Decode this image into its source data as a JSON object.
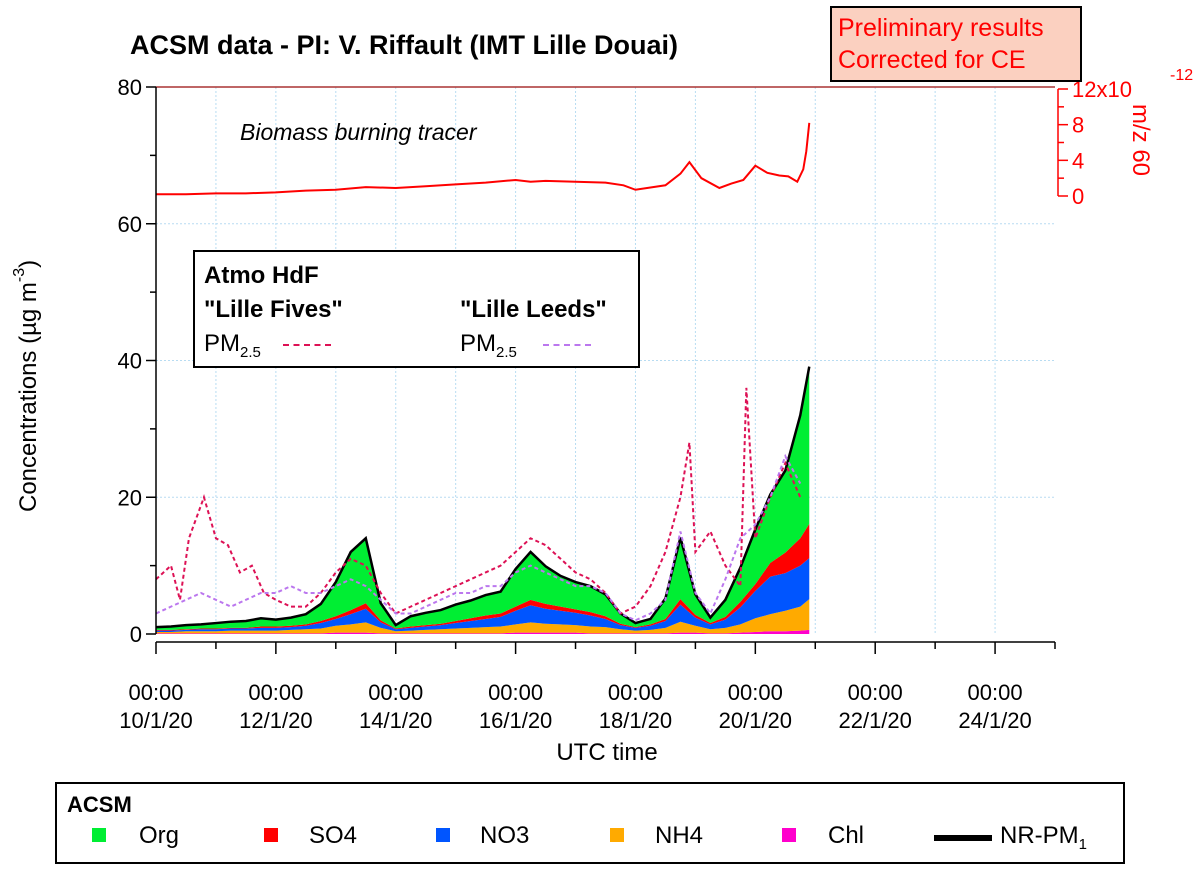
{
  "chart_data": {
    "type": "area",
    "title": "ACSM data - PI: V. Riffault (IMT Lille Douai)",
    "note_box": [
      "Preliminary results",
      "Corrected for CE"
    ],
    "xlabel": "UTC time",
    "ylabel": "Concentrations (µg m",
    "ylabel_sup": "-3",
    "ylabel_close": ")",
    "ylim": [
      0,
      80
    ],
    "yticks": [
      "0",
      "20",
      "40",
      "60",
      "80"
    ],
    "xlim": [
      "2020-01-10T00:00",
      "2020-01-25T00:00"
    ],
    "xticks": [
      {
        "day": 0,
        "time": "00:00",
        "date": "10/1/20"
      },
      {
        "day": 2,
        "time": "00:00",
        "date": "12/1/20"
      },
      {
        "day": 4,
        "time": "00:00",
        "date": "14/1/20"
      },
      {
        "day": 6,
        "time": "00:00",
        "date": "16/1/20"
      },
      {
        "day": 8,
        "time": "00:00",
        "date": "18/1/20"
      },
      {
        "day": 10,
        "time": "00:00",
        "date": "20/1/20"
      },
      {
        "day": 12,
        "time": "00:00",
        "date": "22/1/20"
      },
      {
        "day": 14,
        "time": "00:00",
        "date": "24/1/20"
      }
    ],
    "right_axis": {
      "label": "m/z 60",
      "ylim": [
        0,
        1.2e-11
      ],
      "ticks": [
        "0",
        "4",
        "8",
        "12x10"
      ],
      "exp": "-12",
      "color": "#ff0000",
      "annotation": "Biomass burning tracer"
    },
    "x_days": [
      0,
      0.25,
      0.5,
      0.75,
      1,
      1.25,
      1.5,
      1.75,
      2,
      2.25,
      2.5,
      2.75,
      3,
      3.25,
      3.5,
      3.75,
      4,
      4.25,
      4.5,
      4.75,
      5,
      5.25,
      5.5,
      5.75,
      6,
      6.25,
      6.5,
      6.75,
      7,
      7.25,
      7.5,
      7.75,
      8,
      8.25,
      8.5,
      8.75,
      9,
      9.25,
      9.5,
      9.75,
      10,
      10.25,
      10.5,
      10.75,
      10.9
    ],
    "series": [
      {
        "name": "Chl",
        "color": "#ff00cc",
        "values": [
          0.1,
          0.1,
          0.1,
          0.1,
          0.1,
          0.1,
          0.1,
          0.1,
          0.1,
          0.1,
          0.1,
          0.1,
          0.2,
          0.2,
          0.2,
          0.1,
          0.1,
          0.1,
          0.1,
          0.1,
          0.1,
          0.1,
          0.1,
          0.1,
          0.2,
          0.2,
          0.2,
          0.2,
          0.2,
          0.1,
          0.1,
          0.1,
          0.1,
          0.1,
          0.1,
          0.2,
          0.2,
          0.1,
          0.1,
          0.2,
          0.3,
          0.4,
          0.4,
          0.5,
          0.6
        ]
      },
      {
        "name": "NH4",
        "color": "#ffaa00",
        "values": [
          0.2,
          0.2,
          0.3,
          0.3,
          0.3,
          0.4,
          0.4,
          0.4,
          0.4,
          0.5,
          0.6,
          0.7,
          1.0,
          1.2,
          1.5,
          0.8,
          0.3,
          0.4,
          0.5,
          0.6,
          0.7,
          0.8,
          0.9,
          1.0,
          1.2,
          1.5,
          1.3,
          1.2,
          1.1,
          1.0,
          0.9,
          0.6,
          0.4,
          0.5,
          0.8,
          1.6,
          1.0,
          0.6,
          0.8,
          1.2,
          2.0,
          2.5,
          3.0,
          3.5,
          4.5
        ]
      },
      {
        "name": "NO3",
        "color": "#0055ff",
        "values": [
          0.2,
          0.2,
          0.2,
          0.3,
          0.3,
          0.3,
          0.3,
          0.4,
          0.4,
          0.4,
          0.5,
          0.8,
          1.0,
          1.5,
          2.0,
          0.8,
          0.3,
          0.4,
          0.5,
          0.6,
          0.8,
          1.0,
          1.2,
          1.4,
          2.0,
          2.5,
          2.2,
          2.0,
          1.8,
          1.6,
          1.2,
          0.6,
          0.4,
          0.6,
          1.0,
          2.5,
          1.2,
          0.7,
          1.2,
          2.5,
          4.0,
          5.5,
          5.5,
          6.0,
          6.0
        ]
      },
      {
        "name": "SO4",
        "color": "#ff0000",
        "values": [
          0.1,
          0.1,
          0.1,
          0.1,
          0.1,
          0.1,
          0.1,
          0.2,
          0.2,
          0.2,
          0.2,
          0.3,
          0.4,
          0.6,
          0.8,
          0.3,
          0.1,
          0.2,
          0.2,
          0.2,
          0.3,
          0.4,
          0.5,
          0.5,
          0.6,
          0.8,
          0.7,
          0.6,
          0.5,
          0.5,
          0.4,
          0.2,
          0.1,
          0.2,
          0.3,
          0.8,
          0.4,
          0.2,
          0.4,
          0.8,
          1.0,
          2.0,
          3.0,
          4.0,
          5.0
        ]
      },
      {
        "name": "Org",
        "color": "#00ee33",
        "values": [
          0.4,
          0.5,
          0.6,
          0.6,
          0.8,
          0.9,
          1.0,
          1.2,
          1.0,
          1.2,
          1.5,
          2.5,
          5.0,
          8.5,
          9.5,
          2.5,
          0.5,
          1.5,
          1.8,
          2.0,
          2.4,
          2.6,
          3.0,
          3.2,
          5.5,
          7.0,
          5.5,
          4.5,
          4.0,
          3.8,
          3.2,
          1.5,
          0.6,
          0.8,
          3.0,
          9.0,
          3.0,
          0.8,
          2.5,
          5.0,
          8.0,
          10.0,
          12.0,
          18.0,
          23.0
        ]
      },
      {
        "name": "NR-PM",
        "sub": "1",
        "color": "#000000",
        "values": "stacked_total"
      }
    ],
    "pm25": [
      {
        "station": "\"Lille Fives\"",
        "label": "PM",
        "sub": "2.5",
        "color": "#dd1155",
        "x_days": [
          0,
          0.25,
          0.4,
          0.55,
          0.8,
          1.0,
          1.2,
          1.4,
          1.6,
          1.8,
          2.0,
          2.25,
          2.5,
          2.75,
          3.0,
          3.25,
          3.5,
          3.75,
          4.0,
          4.25,
          4.5,
          4.75,
          5.0,
          5.25,
          5.5,
          5.75,
          6.0,
          6.25,
          6.5,
          6.75,
          7.0,
          7.25,
          7.5,
          7.75,
          8.0,
          8.25,
          8.5,
          8.75,
          8.9,
          9.0,
          9.25,
          9.5,
          9.75,
          9.85,
          10.0,
          10.25,
          10.5,
          10.75
        ],
        "values": [
          8,
          10,
          5,
          14,
          20,
          14,
          13,
          9,
          10,
          6,
          5,
          4,
          4,
          6,
          9,
          11,
          10,
          6,
          3,
          4,
          5,
          6,
          7,
          8,
          9,
          10,
          12,
          14,
          13,
          11,
          9,
          8,
          6,
          3,
          4,
          7,
          12,
          20,
          28,
          12,
          15,
          10,
          7,
          36,
          14,
          20,
          25,
          20
        ]
      },
      {
        "station": "\"Lille Leeds\"",
        "label": "PM",
        "sub": "2.5",
        "color": "#bb77ee",
        "x_days": [
          0,
          0.25,
          0.5,
          0.75,
          1.0,
          1.25,
          1.5,
          1.75,
          2.0,
          2.25,
          2.5,
          2.75,
          3.0,
          3.25,
          3.5,
          3.75,
          4.0,
          4.25,
          4.5,
          4.75,
          5.0,
          5.25,
          5.5,
          5.75,
          6.0,
          6.25,
          6.5,
          6.75,
          7.0,
          7.25,
          7.5,
          7.75,
          8.0,
          8.25,
          8.5,
          8.75,
          9.0,
          9.25,
          9.5,
          9.75,
          10.0,
          10.25,
          10.5,
          10.75
        ],
        "values": [
          3,
          4,
          5,
          6,
          5,
          4,
          5,
          6,
          6,
          7,
          6,
          6,
          7,
          8,
          7,
          5,
          3,
          3,
          4,
          5,
          6,
          6,
          7,
          7,
          9,
          10,
          9,
          8,
          7,
          7,
          6,
          3,
          2,
          3,
          5,
          15,
          6,
          3,
          8,
          14,
          16,
          20,
          26,
          22
        ]
      }
    ],
    "mz60": {
      "color": "#ff0000",
      "x_days": [
        0,
        0.5,
        1,
        1.5,
        2,
        2.5,
        3,
        3.5,
        4,
        4.5,
        5,
        5.5,
        6,
        6.25,
        6.5,
        7,
        7.5,
        7.8,
        8,
        8.5,
        8.75,
        8.9,
        9.1,
        9.4,
        9.6,
        9.8,
        10,
        10.2,
        10.4,
        10.55,
        10.7,
        10.8,
        10.85,
        10.9
      ],
      "values": [
        2e-13,
        2e-13,
        3e-13,
        3e-13,
        4e-13,
        6e-13,
        7e-13,
        1e-12,
        9e-13,
        1.1e-12,
        1.3e-12,
        1.5e-12,
        1.8e-12,
        1.6e-12,
        1.7e-12,
        1.6e-12,
        1.5e-12,
        1.2e-12,
        7e-13,
        1.2e-12,
        2.5e-12,
        3.8e-12,
        2e-12,
        9e-13,
        1.4e-12,
        1.8e-12,
        3.4e-12,
        2.6e-12,
        2.3e-12,
        2.2e-12,
        1.6e-12,
        3e-12,
        5e-12,
        8.2e-12
      ]
    }
  },
  "legend_pm": {
    "header": "Atmo HdF",
    "station1": "\"Lille Fives\"",
    "station2": "\"Lille Leeds\"",
    "pm_label": "PM",
    "pm_sub": "2.5"
  },
  "legend_acsm": {
    "header": "ACSM",
    "items": [
      {
        "label": "Org",
        "color": "#00ee33"
      },
      {
        "label": "SO4",
        "color": "#ff0000"
      },
      {
        "label": "NO3",
        "color": "#0055ff"
      },
      {
        "label": "NH4",
        "color": "#ffaa00"
      },
      {
        "label": "Chl",
        "color": "#ff00cc"
      }
    ],
    "total_label": "NR-PM",
    "total_sub": "1"
  }
}
